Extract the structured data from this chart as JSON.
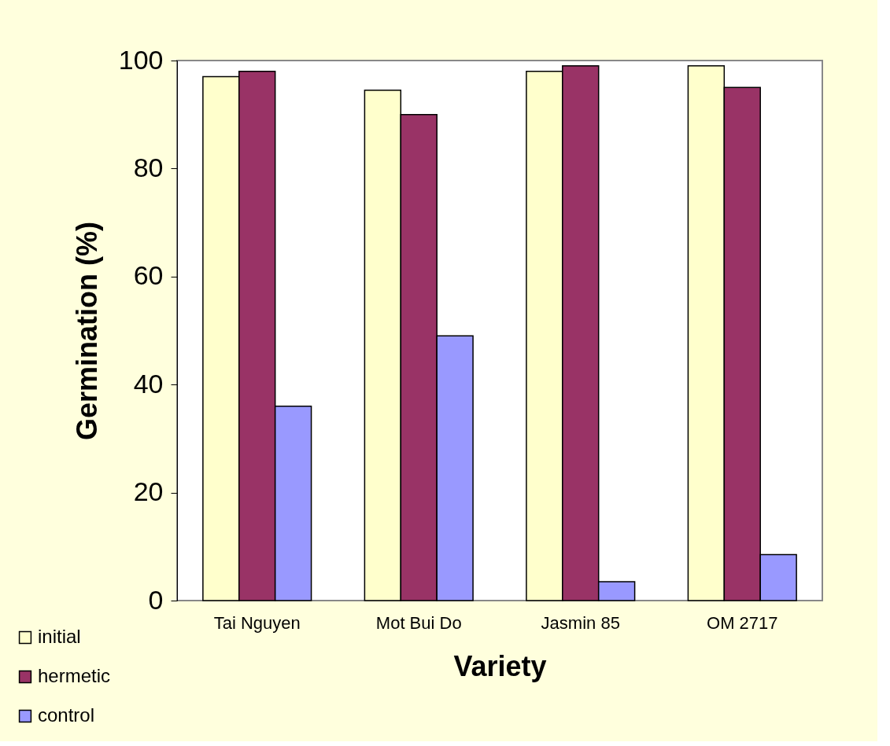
{
  "chart_data": {
    "type": "bar",
    "xlabel": "Variety",
    "ylabel": "Germination (%)",
    "categories": [
      "Tai Nguyen",
      "Mot Bui Do",
      "Jasmin 85",
      "OM 2717"
    ],
    "series": [
      {
        "name": "initial",
        "color": "#ffffcc",
        "values": [
          97,
          94.5,
          98,
          99
        ]
      },
      {
        "name": "hermetic",
        "color": "#993366",
        "values": [
          98,
          90,
          99,
          95
        ]
      },
      {
        "name": "control",
        "color": "#9999ff",
        "values": [
          36,
          49,
          3.5,
          8.5
        ]
      }
    ],
    "ylim": [
      0,
      100
    ],
    "yticks": [
      0,
      20,
      40,
      60,
      80,
      100
    ],
    "grid": false,
    "legend": "bottom left"
  }
}
